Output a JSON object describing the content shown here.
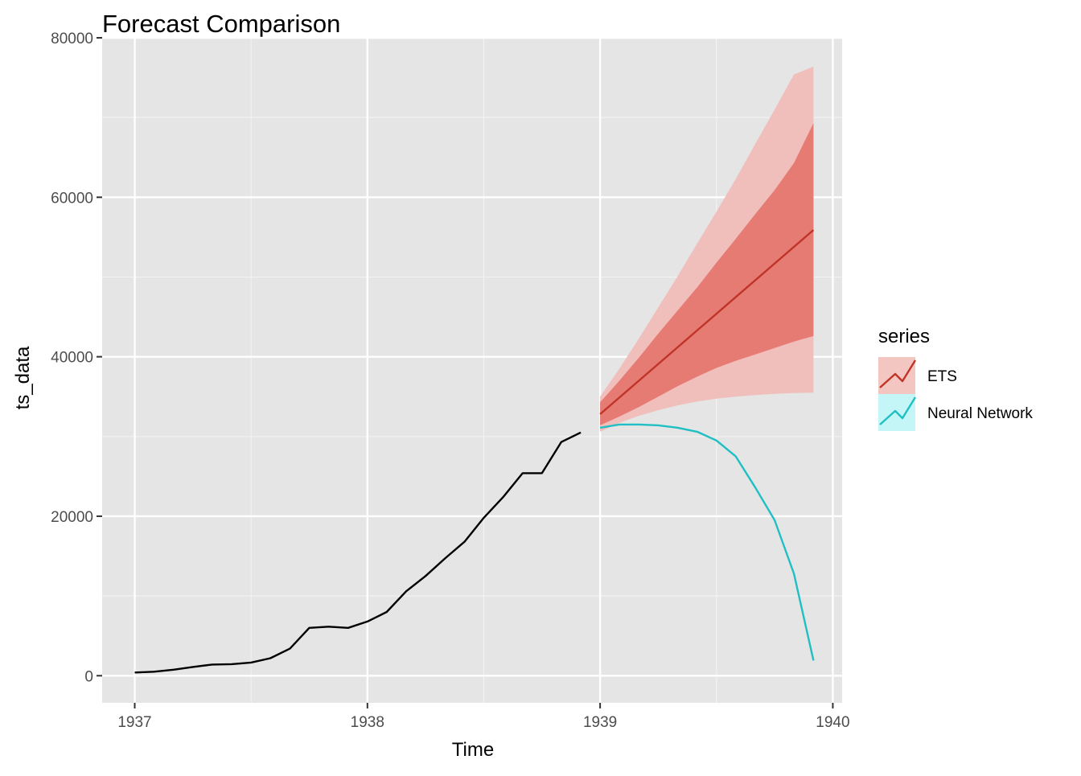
{
  "chart_data": {
    "type": "line",
    "title": "Forecast Comparison",
    "xlabel": "Time",
    "ylabel": "ts_data",
    "xlim": [
      1936.86,
      1940.04
    ],
    "ylim": [
      -3400,
      80000
    ],
    "x_ticks": [
      1937,
      1938,
      1939,
      1940
    ],
    "x_tick_labels": [
      "1937",
      "1938",
      "1939",
      "1940"
    ],
    "y_ticks": [
      0,
      20000,
      40000,
      60000,
      80000
    ],
    "y_tick_labels": [
      "0",
      "20000",
      "40000",
      "60000",
      "80000"
    ],
    "grid": true,
    "background": "#e5e5e5",
    "legend": {
      "title": "series",
      "position": "right",
      "entries": [
        {
          "label": "ETS",
          "color": "#c03427",
          "fill": "#f4c6c2"
        },
        {
          "label": "Neural Network",
          "color": "#1fbfc4",
          "fill": "#c4f6f8"
        }
      ]
    },
    "historical": {
      "color": "#000000",
      "x": [
        1937.0,
        1937.083,
        1937.167,
        1937.25,
        1937.333,
        1937.417,
        1937.5,
        1937.583,
        1937.667,
        1937.75,
        1937.833,
        1937.917,
        1938.0,
        1938.083,
        1938.167,
        1938.25,
        1938.333,
        1938.417,
        1938.5,
        1938.583,
        1938.667,
        1938.75,
        1938.833,
        1938.917
      ],
      "y": [
        400,
        500,
        750,
        1100,
        1400,
        1450,
        1650,
        2200,
        3400,
        6000,
        6150,
        6000,
        6800,
        8000,
        10600,
        12500,
        14700,
        16800,
        19800,
        22400,
        25400,
        25400,
        29300,
        30500
      ]
    },
    "series": [
      {
        "name": "ETS",
        "color": "#c03427",
        "x": [
          1939.0,
          1939.917
        ],
        "y": [
          32800,
          55900
        ],
        "intervals": [
          {
            "level": "95",
            "fill": "#f0bebb",
            "x": [
              1939.0,
              1939.083,
              1939.167,
              1939.25,
              1939.333,
              1939.417,
              1939.5,
              1939.583,
              1939.667,
              1939.75,
              1939.833,
              1939.917
            ],
            "lower": [
              30600,
              31700,
              32600,
              33300,
              33900,
              34400,
              34750,
              35000,
              35200,
              35350,
              35450,
              35500
            ],
            "upper": [
              35000,
              38500,
              42300,
              46200,
              50100,
              54200,
              58200,
              62300,
              66700,
              71000,
              75400,
              76400
            ]
          },
          {
            "level": "80",
            "fill": "#e67b74",
            "x": [
              1939.0,
              1939.083,
              1939.167,
              1939.25,
              1939.333,
              1939.417,
              1939.5,
              1939.583,
              1939.667,
              1939.75,
              1939.833,
              1939.917
            ],
            "lower": [
              31400,
              32500,
              33700,
              35000,
              36300,
              37500,
              38600,
              39500,
              40300,
              41100,
              41900,
              42600
            ],
            "upper": [
              34300,
              37000,
              39900,
              42900,
              45800,
              48700,
              51800,
              54800,
              57900,
              60900,
              64300,
              69300
            ]
          }
        ]
      },
      {
        "name": "Neural Network",
        "color": "#1fbfc4",
        "x": [
          1939.0,
          1939.083,
          1939.167,
          1939.25,
          1939.333,
          1939.417,
          1939.5,
          1939.583,
          1939.667,
          1939.75,
          1939.833,
          1939.917
        ],
        "y": [
          31100,
          31500,
          31500,
          31400,
          31100,
          30600,
          29500,
          27500,
          23600,
          19500,
          12800,
          1900
        ]
      }
    ]
  }
}
